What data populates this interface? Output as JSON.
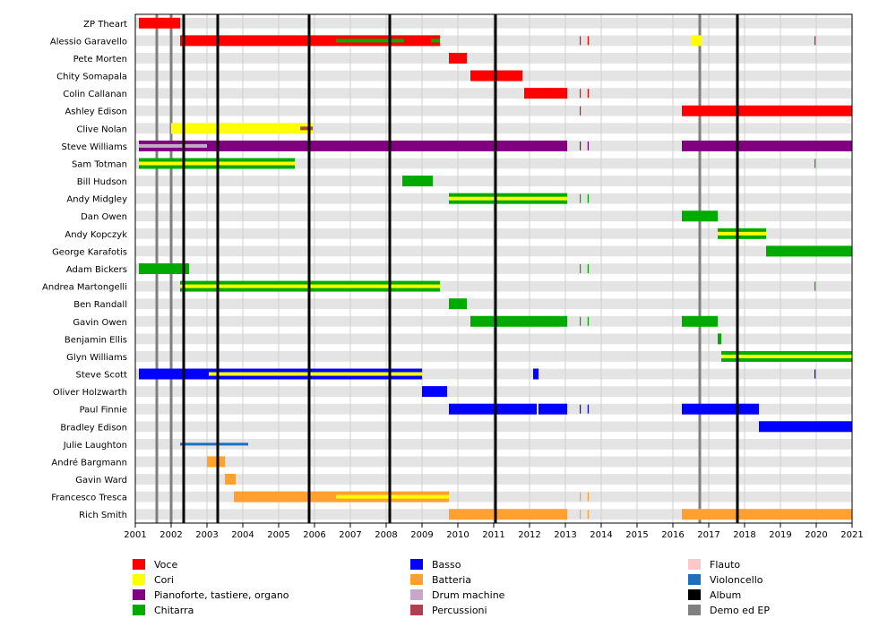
{
  "chart_data": {
    "type": "timeline",
    "x_range": [
      2001,
      2021
    ],
    "x_ticks": [
      "2001",
      "2002",
      "2003",
      "2004",
      "2005",
      "2006",
      "2007",
      "2008",
      "2009",
      "2010",
      "2011",
      "2012",
      "2013",
      "2014",
      "2015",
      "2016",
      "2017",
      "2018",
      "2019",
      "2020",
      "2021"
    ],
    "members": [
      "ZP Theart",
      "Alessio Garavello",
      "Pete Morten",
      "Chity Somapala",
      "Colin Callanan",
      "Ashley Edison",
      "Clive Nolan",
      "Steve Williams",
      "Sam Totman",
      "Bill Hudson",
      "Andy Midgley",
      "Dan Owen",
      "Andy Kopczyk",
      "George Karafotis",
      "Adam Bickers",
      "Andrea Martongelli",
      "Ben Randall",
      "Gavin Owen",
      "Benjamin Ellis",
      "Glyn Williams",
      "Steve Scott",
      "Oliver Holzwarth",
      "Paul Finnie",
      "Bradley Edison",
      "Julie Laughton",
      "André Bargmann",
      "Gavin Ward",
      "Francesco Tresca",
      "Rich Smith"
    ],
    "roles": [
      {
        "key": "voce",
        "label": "Voce",
        "color": "#ff0000"
      },
      {
        "key": "cori",
        "label": "Cori",
        "color": "#ffff00"
      },
      {
        "key": "piano",
        "label": "Pianoforte, tastiere, organo",
        "color": "#800080"
      },
      {
        "key": "chitarra",
        "label": "Chitarra",
        "color": "#00aa00"
      },
      {
        "key": "basso",
        "label": "Basso",
        "color": "#0000ff"
      },
      {
        "key": "batteria",
        "label": "Batteria",
        "color": "#ffa030"
      },
      {
        "key": "drum",
        "label": "Drum machine",
        "color": "#c8a8c8"
      },
      {
        "key": "perc",
        "label": "Percussioni",
        "color": "#b04050"
      },
      {
        "key": "flauto",
        "label": "Flauto",
        "color": "#ffc8c8"
      },
      {
        "key": "violoncello",
        "label": "Violoncello",
        "color": "#1f6fc0"
      },
      {
        "key": "album",
        "label": "Album",
        "color": "#000000"
      },
      {
        "key": "demo",
        "label": "Demo ed EP",
        "color": "#808080"
      }
    ],
    "albums": [
      2002.35,
      2003.3,
      2005.85,
      2008.1,
      2011.05,
      2017.8
    ],
    "demos": [
      2001.6,
      2002.0,
      2016.75
    ],
    "bars": [
      {
        "member": 0,
        "role": "voce",
        "start": 2001.1,
        "end": 2002.25,
        "style": "full"
      },
      {
        "member": 1,
        "role": "voce",
        "start": 2002.25,
        "end": 2009.5,
        "style": "full"
      },
      {
        "member": 1,
        "role": "chitarra",
        "start": 2006.6,
        "end": 2008.5,
        "style": "stripe"
      },
      {
        "member": 1,
        "role": "chitarra",
        "start": 2009.25,
        "end": 2009.5,
        "style": "stripe"
      },
      {
        "member": 1,
        "role": "voce",
        "start": 2013.4,
        "end": 2013.45,
        "style": "tick"
      },
      {
        "member": 1,
        "role": "voce",
        "start": 2013.62,
        "end": 2013.67,
        "style": "tick"
      },
      {
        "member": 1,
        "role": "cori",
        "start": 2016.5,
        "end": 2016.8,
        "style": "full"
      },
      {
        "member": 1,
        "role": "voce",
        "start": 2019.95,
        "end": 2020.0,
        "style": "tick"
      },
      {
        "member": 2,
        "role": "voce",
        "start": 2009.75,
        "end": 2010.25,
        "style": "full"
      },
      {
        "member": 3,
        "role": "voce",
        "start": 2010.35,
        "end": 2011.8,
        "style": "full"
      },
      {
        "member": 4,
        "role": "voce",
        "start": 2011.85,
        "end": 2013.05,
        "style": "full"
      },
      {
        "member": 4,
        "role": "voce",
        "start": 2013.4,
        "end": 2013.45,
        "style": "tick"
      },
      {
        "member": 4,
        "role": "voce",
        "start": 2013.62,
        "end": 2013.67,
        "style": "tick"
      },
      {
        "member": 5,
        "role": "voce",
        "start": 2013.4,
        "end": 2013.45,
        "style": "tick"
      },
      {
        "member": 5,
        "role": "voce",
        "start": 2016.25,
        "end": 2021.0,
        "style": "full"
      },
      {
        "member": 6,
        "role": "cori",
        "start": 2002.0,
        "end": 2005.95,
        "style": "full"
      },
      {
        "member": 6,
        "role": "perc",
        "start": 2005.6,
        "end": 2005.95,
        "style": "stripe"
      },
      {
        "member": 7,
        "role": "piano",
        "start": 2001.1,
        "end": 2013.05,
        "style": "full"
      },
      {
        "member": 7,
        "role": "drum",
        "start": 2001.1,
        "end": 2003.0,
        "style": "stripe"
      },
      {
        "member": 7,
        "role": "piano",
        "start": 2013.4,
        "end": 2013.45,
        "style": "tick"
      },
      {
        "member": 7,
        "role": "piano",
        "start": 2013.62,
        "end": 2013.67,
        "style": "tick"
      },
      {
        "member": 7,
        "role": "piano",
        "start": 2016.25,
        "end": 2021.0,
        "style": "full"
      },
      {
        "member": 8,
        "role": "chitarra",
        "start": 2001.1,
        "end": 2005.45,
        "style": "full"
      },
      {
        "member": 8,
        "role": "cori",
        "start": 2001.1,
        "end": 2005.45,
        "style": "stripe"
      },
      {
        "member": 8,
        "role": "chitarra",
        "start": 2019.95,
        "end": 2020.0,
        "style": "tick"
      },
      {
        "member": 9,
        "role": "chitarra",
        "start": 2008.45,
        "end": 2009.3,
        "style": "full"
      },
      {
        "member": 10,
        "role": "chitarra",
        "start": 2009.75,
        "end": 2013.05,
        "style": "full"
      },
      {
        "member": 10,
        "role": "cori",
        "start": 2009.75,
        "end": 2013.05,
        "style": "stripe"
      },
      {
        "member": 10,
        "role": "chitarra",
        "start": 2013.4,
        "end": 2013.45,
        "style": "tick"
      },
      {
        "member": 10,
        "role": "chitarra",
        "start": 2013.62,
        "end": 2013.67,
        "style": "tick"
      },
      {
        "member": 11,
        "role": "chitarra",
        "start": 2016.25,
        "end": 2017.25,
        "style": "full"
      },
      {
        "member": 12,
        "role": "chitarra",
        "start": 2017.25,
        "end": 2018.6,
        "style": "full"
      },
      {
        "member": 12,
        "role": "cori",
        "start": 2017.25,
        "end": 2018.6,
        "style": "stripe"
      },
      {
        "member": 13,
        "role": "chitarra",
        "start": 2018.6,
        "end": 2021.0,
        "style": "full"
      },
      {
        "member": 14,
        "role": "chitarra",
        "start": 2001.1,
        "end": 2002.5,
        "style": "full"
      },
      {
        "member": 14,
        "role": "chitarra",
        "start": 2013.4,
        "end": 2013.45,
        "style": "tick"
      },
      {
        "member": 14,
        "role": "chitarra",
        "start": 2013.62,
        "end": 2013.67,
        "style": "tick"
      },
      {
        "member": 15,
        "role": "chitarra",
        "start": 2002.25,
        "end": 2009.5,
        "style": "full"
      },
      {
        "member": 15,
        "role": "cori",
        "start": 2002.25,
        "end": 2009.5,
        "style": "stripe"
      },
      {
        "member": 15,
        "role": "chitarra",
        "start": 2019.95,
        "end": 2020.0,
        "style": "tick"
      },
      {
        "member": 16,
        "role": "chitarra",
        "start": 2009.75,
        "end": 2010.25,
        "style": "full"
      },
      {
        "member": 17,
        "role": "chitarra",
        "start": 2010.35,
        "end": 2013.05,
        "style": "full"
      },
      {
        "member": 17,
        "role": "chitarra",
        "start": 2013.4,
        "end": 2013.45,
        "style": "tick"
      },
      {
        "member": 17,
        "role": "chitarra",
        "start": 2013.62,
        "end": 2013.67,
        "style": "tick"
      },
      {
        "member": 17,
        "role": "chitarra",
        "start": 2016.25,
        "end": 2017.25,
        "style": "full"
      },
      {
        "member": 18,
        "role": "chitarra",
        "start": 2017.25,
        "end": 2017.35,
        "style": "full"
      },
      {
        "member": 19,
        "role": "chitarra",
        "start": 2017.35,
        "end": 2021.0,
        "style": "full"
      },
      {
        "member": 19,
        "role": "cori",
        "start": 2017.35,
        "end": 2021.0,
        "style": "stripe"
      },
      {
        "member": 20,
        "role": "basso",
        "start": 2001.1,
        "end": 2009.0,
        "style": "full"
      },
      {
        "member": 20,
        "role": "cori",
        "start": 2003.05,
        "end": 2009.0,
        "style": "stripe"
      },
      {
        "member": 20,
        "role": "basso",
        "start": 2012.1,
        "end": 2012.25,
        "style": "full"
      },
      {
        "member": 20,
        "role": "basso",
        "start": 2019.95,
        "end": 2020.0,
        "style": "tick"
      },
      {
        "member": 21,
        "role": "basso",
        "start": 2009.0,
        "end": 2009.7,
        "style": "full"
      },
      {
        "member": 22,
        "role": "basso",
        "start": 2009.75,
        "end": 2012.2,
        "style": "full"
      },
      {
        "member": 22,
        "role": "basso",
        "start": 2012.25,
        "end": 2013.05,
        "style": "full"
      },
      {
        "member": 22,
        "role": "basso",
        "start": 2013.4,
        "end": 2013.45,
        "style": "tick"
      },
      {
        "member": 22,
        "role": "basso",
        "start": 2013.62,
        "end": 2013.67,
        "style": "tick"
      },
      {
        "member": 22,
        "role": "basso",
        "start": 2016.25,
        "end": 2018.4,
        "style": "full"
      },
      {
        "member": 23,
        "role": "basso",
        "start": 2018.4,
        "end": 2021.0,
        "style": "full"
      },
      {
        "member": 24,
        "role": "violoncello",
        "start": 2002.25,
        "end": 2004.15,
        "style": "thin"
      },
      {
        "member": 25,
        "role": "batteria",
        "start": 2003.0,
        "end": 2003.5,
        "style": "full"
      },
      {
        "member": 26,
        "role": "batteria",
        "start": 2003.5,
        "end": 2003.8,
        "style": "full"
      },
      {
        "member": 27,
        "role": "batteria",
        "start": 2003.75,
        "end": 2009.75,
        "style": "full"
      },
      {
        "member": 27,
        "role": "cori",
        "start": 2006.6,
        "end": 2009.75,
        "style": "stripe"
      },
      {
        "member": 27,
        "role": "batteria",
        "start": 2013.4,
        "end": 2013.45,
        "style": "tick"
      },
      {
        "member": 27,
        "role": "batteria",
        "start": 2013.62,
        "end": 2013.67,
        "style": "tick"
      },
      {
        "member": 28,
        "role": "batteria",
        "start": 2009.75,
        "end": 2013.05,
        "style": "full"
      },
      {
        "member": 28,
        "role": "batteria",
        "start": 2013.4,
        "end": 2013.45,
        "style": "tick"
      },
      {
        "member": 28,
        "role": "batteria",
        "start": 2013.62,
        "end": 2013.67,
        "style": "tick"
      },
      {
        "member": 28,
        "role": "batteria",
        "start": 2016.25,
        "end": 2021.0,
        "style": "full"
      }
    ]
  }
}
